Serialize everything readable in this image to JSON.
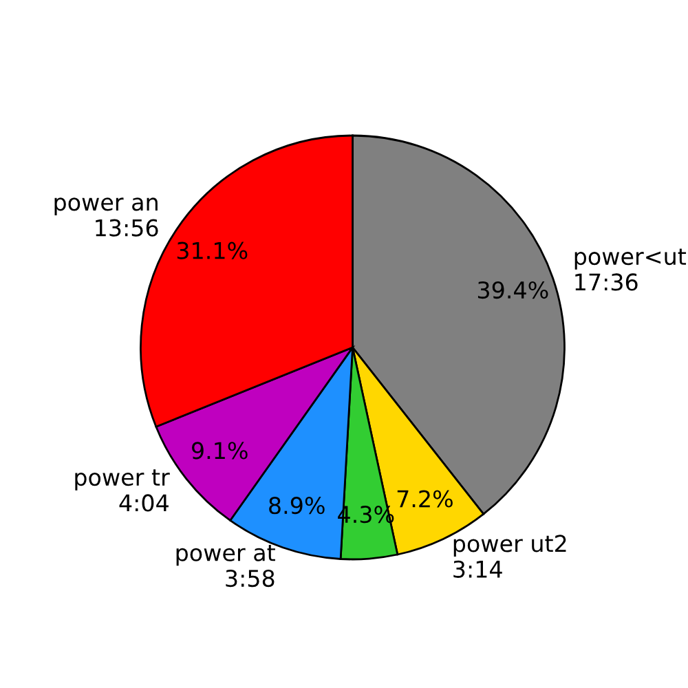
{
  "chart_data": {
    "type": "pie",
    "categories": [
      "power<ut\n17:36",
      "power ut2\n3:14",
      null,
      "power at\n3:58",
      "power tr\n4:04",
      "power an\n13:56"
    ],
    "values": [
      39.4,
      7.2,
      4.3,
      8.9,
      9.1,
      31.1
    ],
    "colors": [
      "#808080",
      "#ffd700",
      "#32cd32",
      "#1e90ff",
      "#bf00bf",
      "#ff0000"
    ],
    "value_labels": [
      "39.4%",
      "7.2%",
      "4.3%",
      "8.9%",
      "9.1%",
      "31.1%"
    ]
  }
}
